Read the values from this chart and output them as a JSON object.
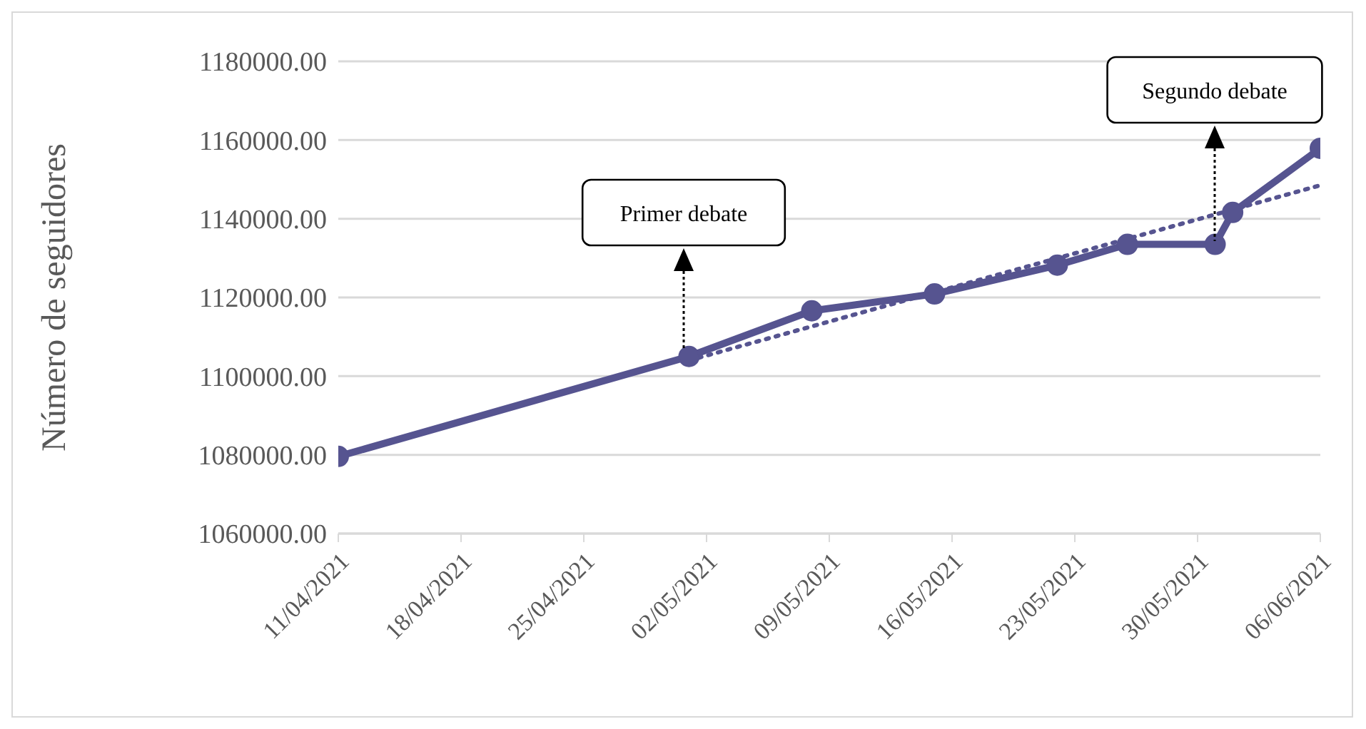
{
  "chart_data": {
    "type": "line",
    "ylabel": "Número de seguidores",
    "x": [
      "2021-04-11",
      "2021-05-01",
      "2021-05-08",
      "2021-05-15",
      "2021-05-22",
      "2021-05-26",
      "2021-05-31",
      "2021-06-01",
      "2021-06-06"
    ],
    "series": [
      {
        "color": "#565490",
        "values": [
          1079600,
          1105000,
          1116600,
          1120900,
          1128200,
          1133500,
          1133500,
          1141600,
          1157900
        ],
        "marker": "circle",
        "line_style": "solid"
      },
      {
        "type": "line",
        "color": "#565490",
        "x": [
          "2021-05-01",
          "2021-06-06"
        ],
        "values": [
          1104000,
          1148500
        ],
        "marker": "none",
        "line_style": "dotted"
      }
    ],
    "xlim": [
      "2021-04-11",
      "2021-06-06"
    ],
    "xticks": [
      {
        "value": "2021-04-11",
        "label": "11/04/2021"
      },
      {
        "value": "2021-04-18",
        "label": "18/04/2021"
      },
      {
        "value": "2021-04-25",
        "label": "25/04/2021"
      },
      {
        "value": "2021-05-02",
        "label": "02/05/2021"
      },
      {
        "value": "2021-05-09",
        "label": "09/05/2021"
      },
      {
        "value": "2021-05-16",
        "label": "16/05/2021"
      },
      {
        "value": "2021-05-23",
        "label": "23/05/2021"
      },
      {
        "value": "2021-05-30",
        "label": "30/05/2021"
      },
      {
        "value": "2021-06-06",
        "label": "06/06/2021"
      }
    ],
    "ylim": [
      1060000,
      1180000
    ],
    "yticks": [
      {
        "value": 1060000,
        "label": "1060000.00"
      },
      {
        "value": 1080000,
        "label": "1080000.00"
      },
      {
        "value": 1100000,
        "label": "1100000.00"
      },
      {
        "value": 1120000,
        "label": "1120000.00"
      },
      {
        "value": 1140000,
        "label": "1140000.00"
      },
      {
        "value": 1160000,
        "label": "1160000.00"
      },
      {
        "value": 1180000,
        "label": "1180000.00"
      }
    ],
    "grid": "y",
    "annotations": [
      "Primer debate",
      "Segundo debate"
    ]
  }
}
